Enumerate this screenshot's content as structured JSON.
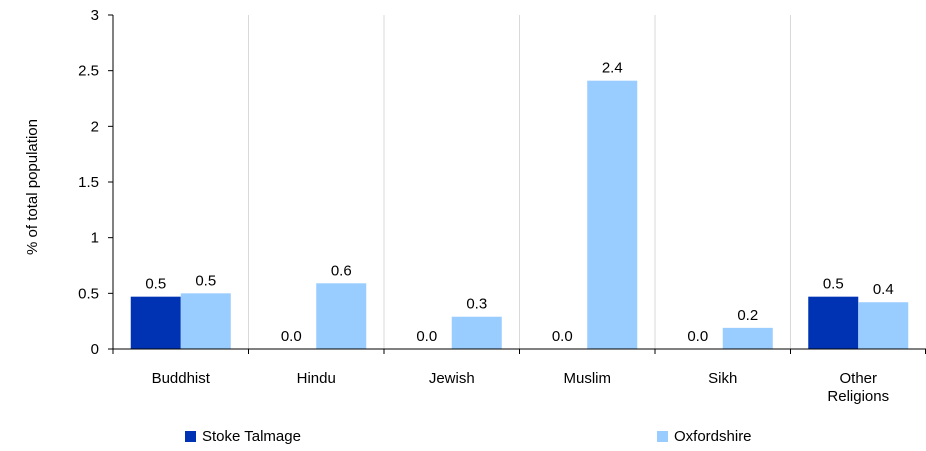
{
  "chart_data": {
    "type": "bar",
    "ylabel": "% of total population",
    "xlabel": "",
    "ylim": [
      0,
      3
    ],
    "yticks": [
      "0",
      "0.5",
      "1",
      "1.5",
      "2",
      "2.5",
      "3"
    ],
    "ytick_values": [
      0,
      0.5,
      1,
      1.5,
      2,
      2.5,
      3
    ],
    "categories": [
      [
        "Buddhist"
      ],
      [
        "Hindu"
      ],
      [
        "Jewish"
      ],
      [
        "Muslim"
      ],
      [
        "Sikh"
      ],
      [
        "Other",
        "Religions"
      ]
    ],
    "series": [
      {
        "name": "Stoke Talmage",
        "color": "#0033b3",
        "values": [
          0.47,
          0,
          0,
          0,
          0,
          0.47
        ],
        "labels": [
          "0.5",
          "0.0",
          "0.0",
          "0.0",
          "0.0",
          "0.5"
        ]
      },
      {
        "name": "Oxfordshire",
        "color": "#99ccff",
        "values": [
          0.5,
          0.59,
          0.29,
          2.41,
          0.19,
          0.42
        ],
        "labels": [
          "0.5",
          "0.6",
          "0.3",
          "2.4",
          "0.2",
          "0.4"
        ]
      }
    ],
    "grid": "vertical-category-separators",
    "legend_position": "bottom"
  }
}
